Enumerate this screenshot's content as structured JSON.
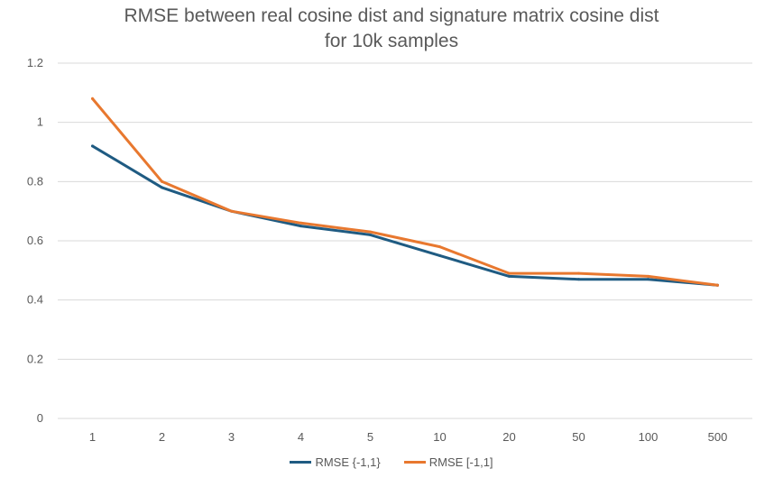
{
  "chart_data": {
    "type": "line",
    "title_lines": [
      "RMSE between real cosine dist and signature matrix cosine dist",
      "for 10k samples"
    ],
    "xlabel": "",
    "ylabel": "",
    "categories": [
      "1",
      "2",
      "3",
      "4",
      "5",
      "10",
      "20",
      "50",
      "100",
      "500"
    ],
    "ylim": [
      0,
      1.2
    ],
    "yticks": [
      "0",
      "0.2",
      "0.4",
      "0.6",
      "0.8",
      "1",
      "1.2"
    ],
    "grid": "horizontal",
    "legend_position": "bottom",
    "series": [
      {
        "name": "RMSE {-1,1}",
        "color": "#1f5b82",
        "values": [
          0.92,
          0.78,
          0.7,
          0.65,
          0.62,
          0.55,
          0.48,
          0.47,
          0.47,
          0.45
        ]
      },
      {
        "name": "RMSE [-1,1]",
        "color": "#e8782f",
        "values": [
          1.08,
          0.8,
          0.7,
          0.66,
          0.63,
          0.58,
          0.49,
          0.49,
          0.48,
          0.45
        ]
      }
    ]
  }
}
